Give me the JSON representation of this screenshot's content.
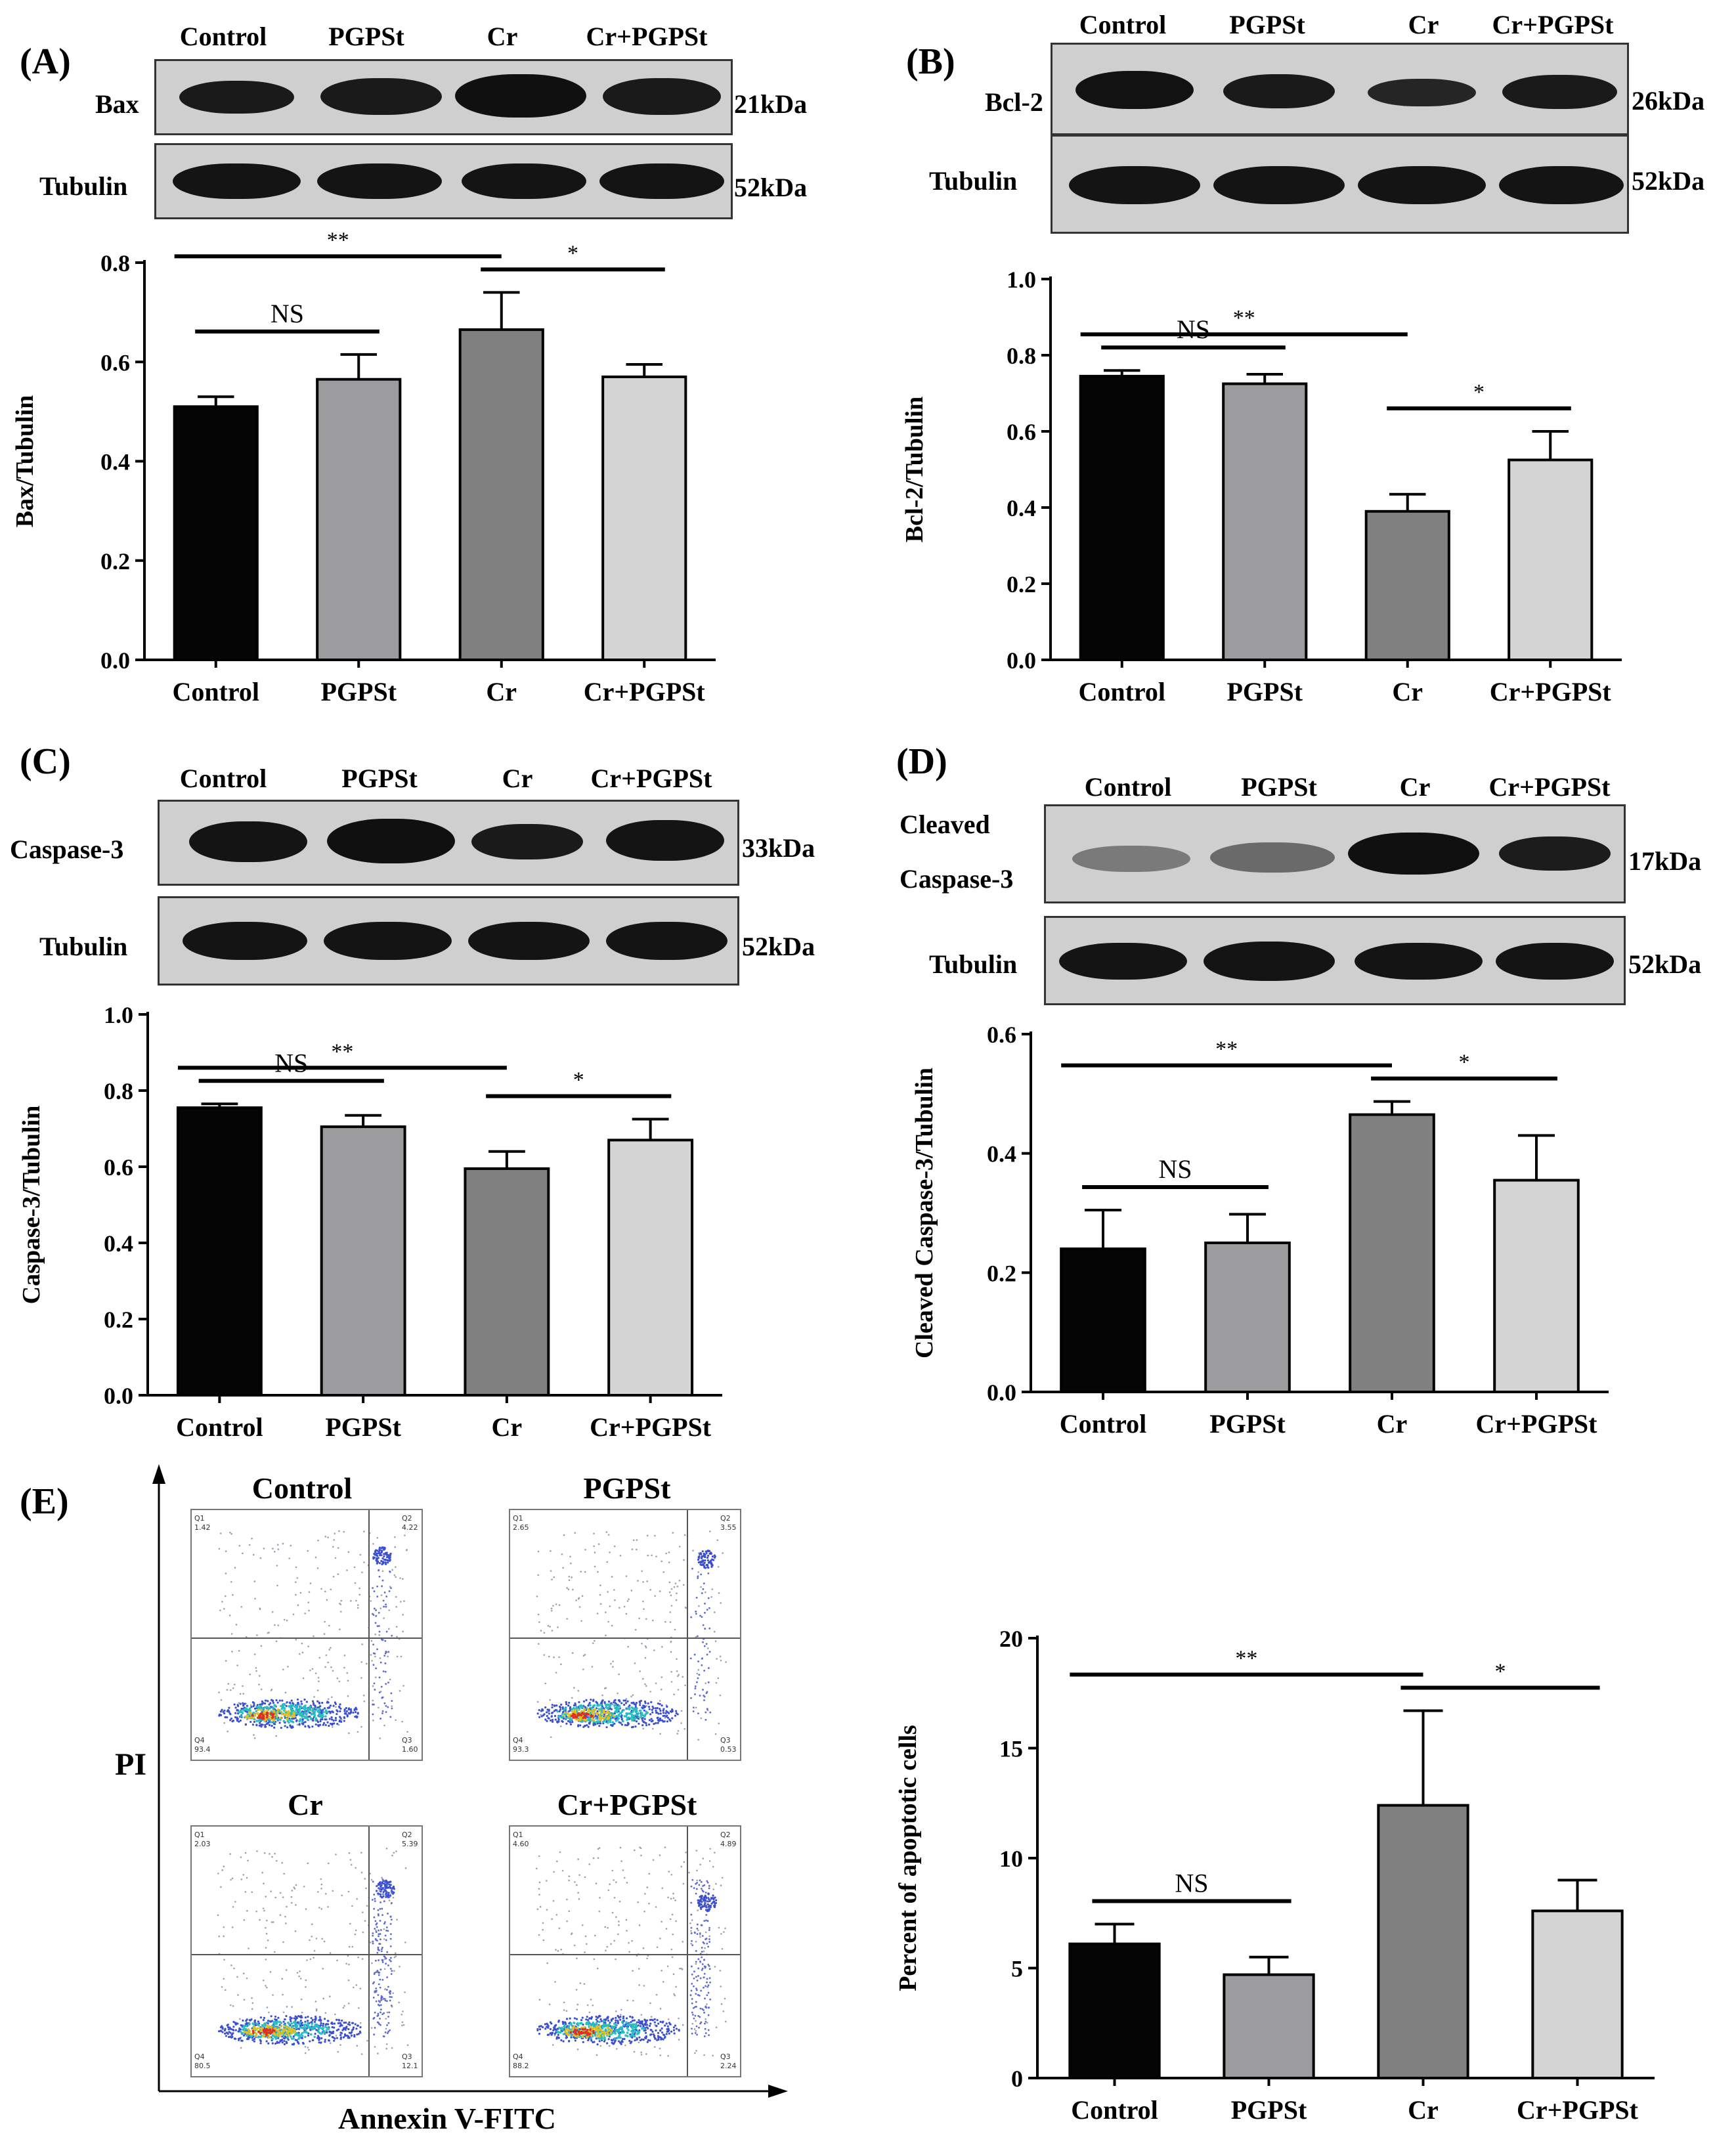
{
  "panels": [
    {
      "id": "A",
      "label": "(A)",
      "blot": {
        "columns": [
          "Control",
          "PGPSt",
          "Cr",
          "Cr+PGPSt"
        ],
        "rows": [
          {
            "name": "Bax",
            "kda": "21kDa"
          },
          {
            "name": "Tubulin",
            "kda": "52kDa"
          }
        ]
      },
      "chart_data": {
        "type": "bar",
        "categories": [
          "Control",
          "PGPSt",
          "Cr",
          "Cr+PGPSt"
        ],
        "values": [
          0.51,
          0.565,
          0.665,
          0.57
        ],
        "errors": [
          0.02,
          0.05,
          0.075,
          0.025
        ],
        "ylabel": "Bax/Tubulin",
        "ylim": [
          0,
          0.8
        ],
        "yticks": [
          "0.0",
          "0.2",
          "0.4",
          "0.6",
          "0.8"
        ],
        "colors": [
          "#050505",
          "#9c9c9f",
          "#808080",
          "#d4d4d4"
        ],
        "significance": [
          {
            "from": 0,
            "to": 2,
            "text": "**"
          },
          {
            "from": 0,
            "to": 1,
            "text": "NS"
          },
          {
            "from": 2,
            "to": 3,
            "text": "*"
          }
        ]
      }
    },
    {
      "id": "B",
      "label": "(B)",
      "blot": {
        "columns": [
          "Control",
          "PGPSt",
          "Cr",
          "Cr+PGPSt"
        ],
        "rows": [
          {
            "name": "Bcl-2",
            "kda": "26kDa"
          },
          {
            "name": "Tubulin",
            "kda": "52kDa"
          }
        ]
      },
      "chart_data": {
        "type": "bar",
        "categories": [
          "Control",
          "PGPSt",
          "Cr",
          "Cr+PGPSt"
        ],
        "values": [
          0.745,
          0.725,
          0.39,
          0.525
        ],
        "errors": [
          0.015,
          0.025,
          0.045,
          0.075
        ],
        "ylabel": "Bcl-2/Tubulin",
        "ylim": [
          0,
          1.0
        ],
        "yticks": [
          "0.0",
          "0.2",
          "0.4",
          "0.6",
          "0.8",
          "1.0"
        ],
        "colors": [
          "#050505",
          "#9c9c9f",
          "#808080",
          "#d4d4d4"
        ],
        "significance": [
          {
            "from": 0,
            "to": 2,
            "text": "**"
          },
          {
            "from": 0,
            "to": 1,
            "text": "NS"
          },
          {
            "from": 2,
            "to": 3,
            "text": "*"
          }
        ]
      }
    },
    {
      "id": "C",
      "label": "(C)",
      "blot": {
        "columns": [
          "Control",
          "PGPSt",
          "Cr",
          "Cr+PGPSt"
        ],
        "rows": [
          {
            "name": "Caspase-3",
            "kda": "33kDa"
          },
          {
            "name": "Tubulin",
            "kda": "52kDa"
          }
        ]
      },
      "chart_data": {
        "type": "bar",
        "categories": [
          "Control",
          "PGPSt",
          "Cr",
          "Cr+PGPSt"
        ],
        "values": [
          0.755,
          0.705,
          0.595,
          0.67
        ],
        "errors": [
          0.01,
          0.03,
          0.045,
          0.055
        ],
        "ylabel": "Caspase-3/Tubulin",
        "ylim": [
          0,
          1.0
        ],
        "yticks": [
          "0.0",
          "0.2",
          "0.4",
          "0.6",
          "0.8",
          "1.0"
        ],
        "colors": [
          "#050505",
          "#9c9c9f",
          "#808080",
          "#d4d4d4"
        ],
        "significance": [
          {
            "from": 0,
            "to": 2,
            "text": "**"
          },
          {
            "from": 0,
            "to": 1,
            "text": "NS"
          },
          {
            "from": 2,
            "to": 3,
            "text": "*"
          }
        ]
      }
    },
    {
      "id": "D",
      "label": "(D)",
      "blot": {
        "columns": [
          "Control",
          "PGPSt",
          "Cr",
          "Cr+PGPSt"
        ],
        "rows": [
          {
            "name": "Cleaved Caspase-3",
            "line1": "Cleaved",
            "line2": "Caspase-3",
            "kda": "17kDa"
          },
          {
            "name": "Tubulin",
            "kda": "52kDa"
          }
        ]
      },
      "chart_data": {
        "type": "bar",
        "categories": [
          "Control",
          "PGPSt",
          "Cr",
          "Cr+PGPSt"
        ],
        "values": [
          0.24,
          0.25,
          0.465,
          0.355
        ],
        "errors": [
          0.065,
          0.048,
          0.022,
          0.075
        ],
        "ylabel": "Cleaved Caspase-3/Tubulin",
        "ylim": [
          0,
          0.6
        ],
        "yticks": [
          "0.0",
          "0.2",
          "0.4",
          "0.6"
        ],
        "colors": [
          "#050505",
          "#9c9c9f",
          "#808080",
          "#d4d4d4"
        ],
        "significance": [
          {
            "from": 0,
            "to": 2,
            "text": "**"
          },
          {
            "from": 0,
            "to": 1,
            "text": "NS"
          },
          {
            "from": 2,
            "to": 3,
            "text": "*"
          }
        ]
      }
    }
  ],
  "panel_e": {
    "label": "(E)",
    "flow": {
      "y_axis": "PI",
      "x_axis": "Annexin V-FITC",
      "plots": [
        {
          "title": "Control",
          "q1": "1.42",
          "q2": "4.22",
          "q3": "1.60",
          "q4": "93.4"
        },
        {
          "title": "PGPSt",
          "q1": "2.65",
          "q2": "3.55",
          "q3": "0.53",
          "q4": "93.3"
        },
        {
          "title": "Cr",
          "q1": "2.03",
          "q2": "5.39",
          "q3": "12.1",
          "q4": "80.5"
        },
        {
          "title": "Cr+PGPSt",
          "q1": "4.60",
          "q2": "4.89",
          "q3": "2.24",
          "q4": "88.2"
        }
      ]
    },
    "chart_data": {
      "type": "bar",
      "categories": [
        "Control",
        "PGPSt",
        "Cr",
        "Cr+PGPSt"
      ],
      "values": [
        6.1,
        4.7,
        12.4,
        7.6
      ],
      "errors": [
        0.9,
        0.8,
        4.3,
        1.4
      ],
      "ylabel": "Percent of apoptotic  cells",
      "ylim": [
        0,
        20
      ],
      "yticks": [
        "0",
        "5",
        "10",
        "15",
        "20"
      ],
      "colors": [
        "#050505",
        "#9c9c9f",
        "#808080",
        "#d4d4d4"
      ],
      "significance": [
        {
          "from": 0,
          "to": 2,
          "text": "**"
        },
        {
          "from": 0,
          "to": 1,
          "text": "NS"
        },
        {
          "from": 2,
          "to": 3,
          "text": "*"
        }
      ]
    }
  }
}
